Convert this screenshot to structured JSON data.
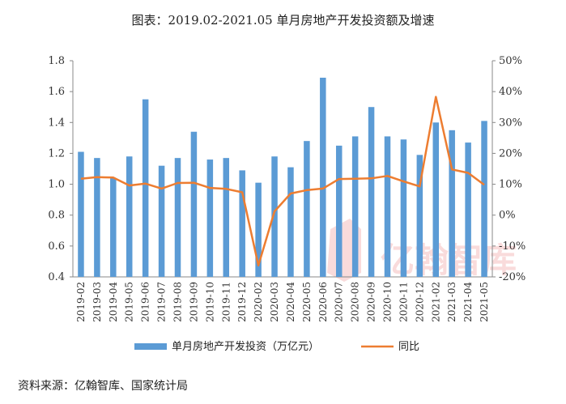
{
  "chart_data": {
    "type": "bar",
    "title": "图表：2019.02-2021.05 单月房地产开发投资额及增速",
    "categories": [
      "2019-02",
      "2019-03",
      "2019-04",
      "2019-05",
      "2019-06",
      "2019-07",
      "2019-08",
      "2019-09",
      "2019-10",
      "2019-11",
      "2019-12",
      "2020-02",
      "2020-03",
      "2020-04",
      "2020-05",
      "2020-06",
      "2020-07",
      "2020-08",
      "2020-09",
      "2020-10",
      "2020-11",
      "2020-12",
      "2021-02",
      "2021-03",
      "2021-04",
      "2021-05"
    ],
    "series": [
      {
        "name": "单月房地产开发投资（万亿元）",
        "type": "bar",
        "axis": "left",
        "color": "#5B9BD5",
        "values": [
          1.21,
          1.17,
          1.04,
          1.18,
          1.55,
          1.12,
          1.17,
          1.34,
          1.16,
          1.17,
          1.09,
          1.01,
          1.18,
          1.11,
          1.28,
          1.69,
          1.25,
          1.31,
          1.5,
          1.31,
          1.29,
          1.19,
          1.4,
          1.35,
          1.27,
          1.41
        ]
      },
      {
        "name": "同比",
        "type": "line",
        "axis": "right",
        "color": "#ED7D31",
        "values": [
          11.8,
          12.3,
          12.2,
          9.6,
          10.2,
          8.6,
          10.4,
          10.5,
          8.8,
          8.5,
          7.4,
          -16.3,
          1.2,
          7.0,
          8.1,
          8.6,
          11.7,
          11.8,
          11.9,
          12.7,
          10.9,
          9.3,
          38.3,
          14.8,
          13.7,
          9.8
        ]
      }
    ],
    "y_left": {
      "min": 0.4,
      "max": 1.8,
      "ticks": [
        "0.4",
        "0.6",
        "0.8",
        "1.0",
        "1.2",
        "1.4",
        "1.6",
        "1.8"
      ]
    },
    "y_right": {
      "min": -20,
      "max": 50,
      "ticks": [
        "-20%",
        "-10%",
        "0%",
        "10%",
        "20%",
        "30%",
        "40%",
        "50%"
      ]
    },
    "grid": false,
    "legend_position": "bottom"
  },
  "source_note": "资料来源：亿翰智库、国家统计局",
  "watermark": "亿翰智库"
}
